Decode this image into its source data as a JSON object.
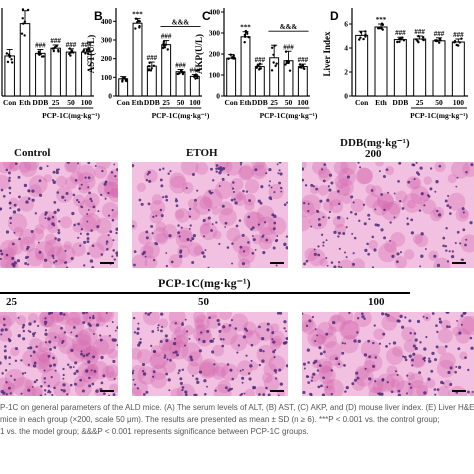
{
  "chart_data": [
    {
      "panel": "",
      "type": "bar",
      "categories": [
        "Con",
        "Eth",
        "DDB",
        "25",
        "50",
        "100"
      ],
      "values": [
        62,
        112,
        66,
        74,
        68,
        68
      ],
      "errors": [
        10,
        20,
        6,
        5,
        5,
        5
      ],
      "sig_labels": [
        "",
        "",
        "###",
        "###",
        "###",
        "###"
      ],
      "ylabel": "",
      "ylim": [
        0,
        130
      ],
      "group_label": "PCP-1C(mg·kg⁻¹)"
    },
    {
      "panel": "B",
      "type": "bar",
      "categories": [
        "Con",
        "Eth",
        "DDB",
        "25",
        "50",
        "100"
      ],
      "values": [
        92,
        390,
        160,
        275,
        130,
        105
      ],
      "errors": [
        12,
        25,
        22,
        22,
        12,
        10
      ],
      "sig_labels": [
        "",
        "***",
        "###",
        "###",
        "###",
        "###"
      ],
      "bracket_label": "&&&",
      "ylabel": "AST(U/L)",
      "ylim": [
        0,
        450
      ],
      "yticks": [
        0,
        100,
        200,
        300,
        400
      ],
      "group_label": "PCP-1C(mg·kg⁻¹)"
    },
    {
      "panel": "C",
      "type": "bar",
      "categories": [
        "Con",
        "Eth",
        "DDB",
        "25",
        "50",
        "100"
      ],
      "values": [
        180,
        282,
        140,
        182,
        168,
        140
      ],
      "errors": [
        18,
        24,
        12,
        60,
        45,
        12
      ],
      "sig_labels": [
        "",
        "***",
        "###",
        "",
        "###",
        "###"
      ],
      "bracket_label": "&&&",
      "ylabel": "AKP(U/L)",
      "ylim": [
        0,
        400
      ],
      "yticks": [
        0,
        100,
        200,
        300,
        400
      ],
      "group_label": "PCP-1C(mg·kg⁻¹)"
    },
    {
      "panel": "D",
      "type": "bar",
      "categories": [
        "Con",
        "Eth",
        "DDB",
        "25",
        "50",
        "100"
      ],
      "values": [
        5.05,
        5.75,
        4.7,
        4.75,
        4.6,
        4.5
      ],
      "errors": [
        0.35,
        0.25,
        0.2,
        0.25,
        0.25,
        0.25
      ],
      "sig_labels": [
        "",
        "***",
        "###",
        "###",
        "###",
        "###"
      ],
      "ylabel": "Liver Index",
      "ylim": [
        0,
        7
      ],
      "yticks": [
        0,
        2,
        4,
        6
      ],
      "group_label": "PCP-1C(mg·kg⁻¹)"
    }
  ],
  "histology": {
    "row1": [
      {
        "label": "Control"
      },
      {
        "label": "ETOH"
      },
      {
        "label": "DDB(mg·kg⁻¹)",
        "sublabel": "200"
      }
    ],
    "group_header": "PCP-1C(mg·kg⁻¹)",
    "row2": [
      {
        "label": "25"
      },
      {
        "label": "50"
      },
      {
        "label": "100"
      }
    ],
    "tissue_color": "#d46bb0",
    "bg_color": "#f2c0e0"
  },
  "caption": {
    "line1": "P-1C on general parameters of the ALD mice. (A) The serum levels of ALT, (B) AST, (C) AKP, and (D) mouse liver index. (E) Liver H&E",
    "line2": "mice in each group (×200, scale 50 μm). The results are presented as mean ± SD (n ≥ 6). ***P < 0.001 vs. the control group;",
    "line3": "1 vs. the model group; &&&P < 0.001 represents significance between PCP-1C groups."
  }
}
